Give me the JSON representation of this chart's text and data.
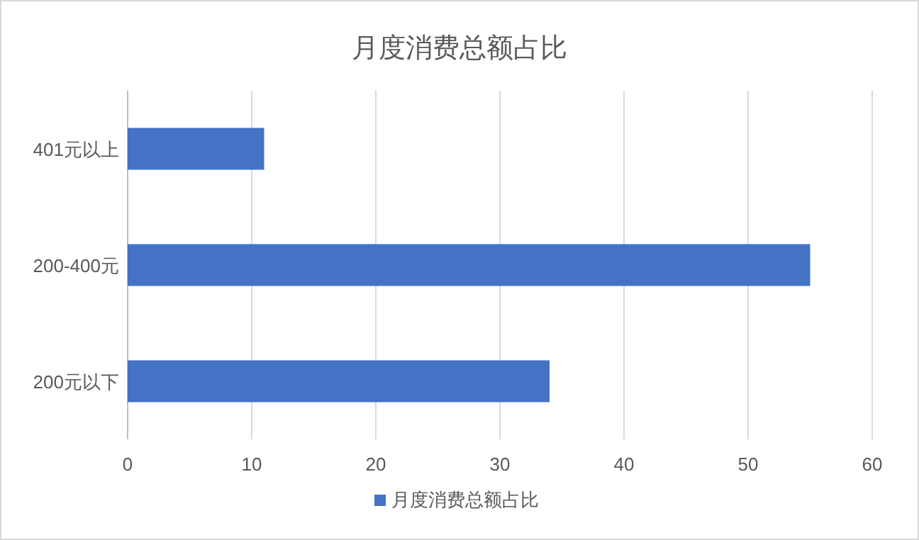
{
  "chart_data": {
    "type": "bar",
    "orientation": "horizontal",
    "title": "月度消费总额占比",
    "categories": [
      "401元以上",
      "200-400元",
      "200元以下"
    ],
    "series": [
      {
        "name": "月度消费总额占比",
        "color": "#4472c4",
        "values": [
          11,
          55,
          34
        ]
      }
    ],
    "xlim": [
      0,
      60
    ],
    "xticks": [
      0,
      10,
      20,
      30,
      40,
      50,
      60
    ],
    "grid": "x",
    "legend": "bottom"
  }
}
